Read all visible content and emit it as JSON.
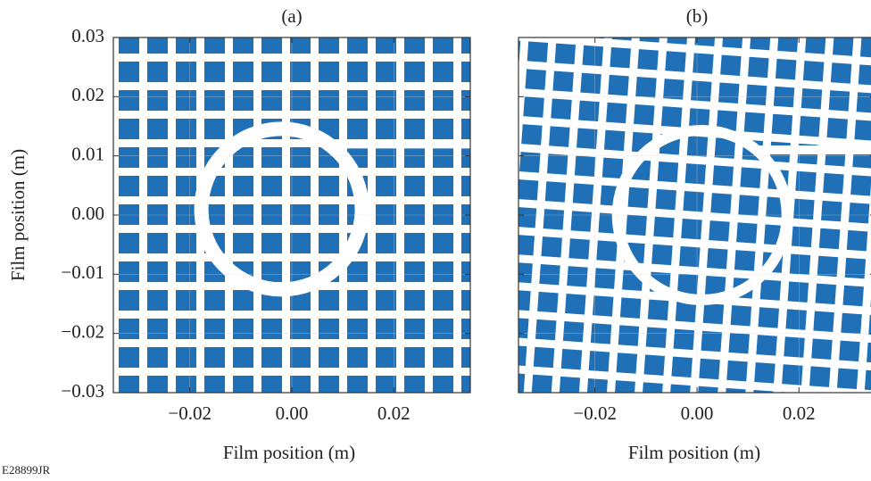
{
  "chart_data": [
    {
      "type": "image",
      "title": "(a)",
      "xlabel": "Film position (m)",
      "ylabel": "Film position (m)",
      "xlim": [
        -0.035,
        0.035
      ],
      "ylim": [
        -0.03,
        0.03
      ],
      "xticks": [
        {
          "value": -0.02,
          "label": "−0.02"
        },
        {
          "value": 0,
          "label": "0.00"
        },
        0.02
      ],
      "yticks": [
        {
          "value": -0.03,
          "label": "−0.03"
        },
        {
          "value": -0.02,
          "label": "−0.02"
        },
        {
          "value": -0.01,
          "label": "−0.01"
        },
        {
          "value": 0,
          "label": "0.00"
        },
        0.01,
        0.02,
        0.03
      ],
      "color": "#1f70b6",
      "grid": true
    },
    {
      "type": "image",
      "title": "(b)",
      "xlabel": "Film position (m)",
      "xlim": [
        -0.035,
        0.035
      ],
      "ylim": [
        -0.03,
        0.03
      ],
      "xticks": [
        {
          "value": -0.02,
          "label": "−0.02"
        },
        {
          "value": 0,
          "label": "0.00"
        },
        0.02
      ],
      "yticks": [
        -0.03,
        -0.02,
        -0.01,
        0,
        0.01,
        0.02,
        0.03
      ],
      "color": "#1f70b6",
      "grid": true
    }
  ],
  "credit": "E28899JR"
}
